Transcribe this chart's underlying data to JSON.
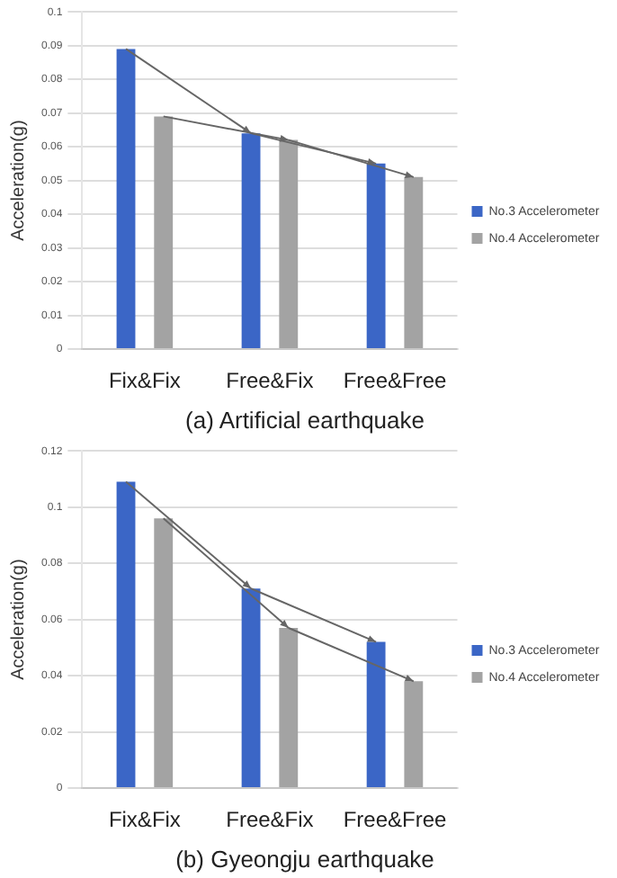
{
  "chart_data": [
    {
      "type": "bar",
      "title": "(a) Artificial earthquake",
      "ylabel": "Acceleration(g)",
      "categories": [
        "Fix&Fix",
        "Free&Fix",
        "Free&Free"
      ],
      "series": [
        {
          "name": "No.3 Accelerometer",
          "color": "#3b66c6",
          "values": [
            0.089,
            0.064,
            0.055
          ]
        },
        {
          "name": "No.4 Accelerometer",
          "color": "#a3a3a3",
          "values": [
            0.069,
            0.062,
            0.051
          ]
        }
      ],
      "ylim": [
        0,
        0.1
      ],
      "yticks": [
        0,
        0.01,
        0.02,
        0.03,
        0.04,
        0.05,
        0.06,
        0.07,
        0.08,
        0.09,
        0.1
      ],
      "grid": "y",
      "legend": "right"
    },
    {
      "type": "bar",
      "title": "(b) Gyeongju earthquake",
      "ylabel": "Acceleration(g)",
      "categories": [
        "Fix&Fix",
        "Free&Fix",
        "Free&Free"
      ],
      "series": [
        {
          "name": "No.3 Accelerometer",
          "color": "#3b66c6",
          "values": [
            0.109,
            0.071,
            0.052
          ]
        },
        {
          "name": "No.4 Accelerometer",
          "color": "#a3a3a3",
          "values": [
            0.096,
            0.057,
            0.038
          ]
        }
      ],
      "ylim": [
        0,
        0.12
      ],
      "yticks": [
        0,
        0.02,
        0.04,
        0.06,
        0.08,
        0.1,
        0.12
      ],
      "grid": "y",
      "legend": "right"
    }
  ]
}
